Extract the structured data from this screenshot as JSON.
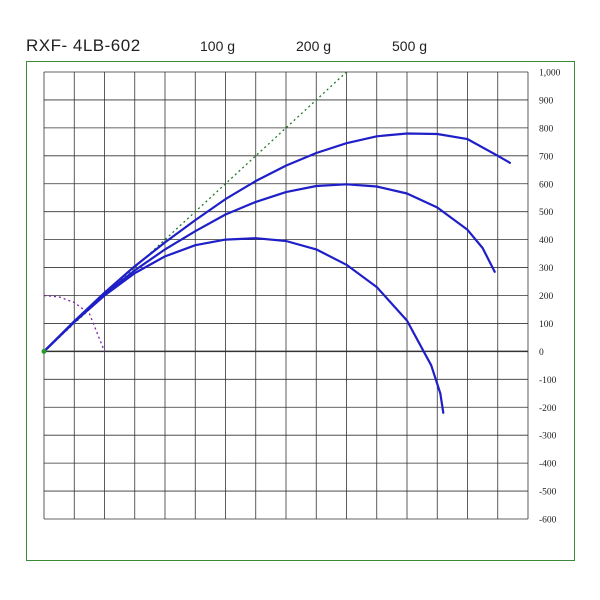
{
  "title": "RXF- 4LB-602",
  "legend": [
    "100 g",
    "200 g",
    "500 g"
  ],
  "colors": {
    "curve": "#1f1fc8",
    "frame": "#3a8a3a",
    "grid": "#333333",
    "reference": "#1f7a2a",
    "arc": "#7a1fa8"
  },
  "chart_data": {
    "type": "line",
    "title": "RXF- 4LB-602",
    "xlim": [
      0,
      1600
    ],
    "ylim": [
      -600,
      1000
    ],
    "grid": true,
    "y_ticks": [
      "1,000",
      "900",
      "800",
      "700",
      "600",
      "500",
      "400",
      "300",
      "200",
      "100",
      "0",
      "-100",
      "-200",
      "-300",
      "-400",
      "-500",
      "-600"
    ],
    "series": [
      {
        "name": "100 g",
        "x": [
          0,
          100,
          200,
          300,
          400,
          500,
          600,
          700,
          800,
          900,
          1000,
          1100,
          1200,
          1280,
          1310,
          1320
        ],
        "y": [
          0,
          105,
          200,
          280,
          340,
          380,
          400,
          405,
          395,
          365,
          310,
          230,
          110,
          -50,
          -150,
          -220
        ]
      },
      {
        "name": "200 g",
        "x": [
          0,
          100,
          200,
          300,
          400,
          500,
          600,
          700,
          800,
          900,
          1000,
          1100,
          1200,
          1300,
          1400,
          1450,
          1490
        ],
        "y": [
          0,
          105,
          205,
          290,
          365,
          430,
          490,
          535,
          570,
          592,
          598,
          590,
          565,
          515,
          435,
          370,
          285
        ]
      },
      {
        "name": "500 g",
        "x": [
          0,
          100,
          200,
          300,
          400,
          500,
          600,
          700,
          800,
          900,
          1000,
          1100,
          1200,
          1300,
          1400,
          1500,
          1540
        ],
        "y": [
          0,
          108,
          210,
          305,
          390,
          470,
          545,
          610,
          665,
          710,
          745,
          770,
          780,
          778,
          760,
          700,
          675
        ]
      },
      {
        "x": [
          0,
          1000
        ],
        "y": [
          0,
          1000
        ]
      },
      {
        "x": [
          0,
          50,
          100,
          150,
          200
        ],
        "y": [
          200,
          195,
          175,
          135,
          0
        ]
      }
    ]
  }
}
